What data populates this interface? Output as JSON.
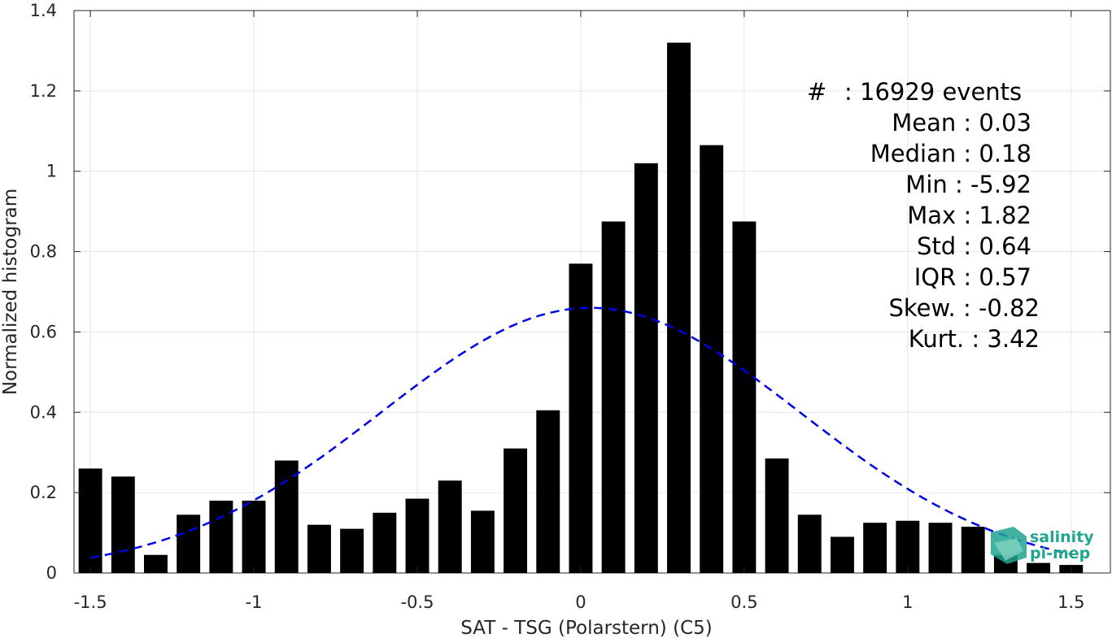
{
  "chart_data": {
    "type": "bar",
    "xlabel": "SAT - TSG (Polarstern) (C5)",
    "ylabel": "Normalized histogram",
    "xlim": [
      -1.55,
      1.62
    ],
    "ylim": [
      0,
      1.4
    ],
    "xticks": [
      -1.5,
      -1,
      -0.5,
      0,
      0.5,
      1,
      1.5
    ],
    "xtick_labels": [
      "-1.5",
      "-1",
      "-0.5",
      "0",
      "0.5",
      "1",
      "1.5"
    ],
    "yticks": [
      0,
      0.2,
      0.4,
      0.6,
      0.8,
      1,
      1.2,
      1.4
    ],
    "ytick_labels": [
      "0",
      "0.2",
      "0.4",
      "0.6",
      "0.8",
      "1",
      "1.2",
      "1.4"
    ],
    "grid": true,
    "bar_color": "#000000",
    "x": [
      -1.5,
      -1.4,
      -1.3,
      -1.2,
      -1.1,
      -1.0,
      -0.9,
      -0.8,
      -0.7,
      -0.6,
      -0.5,
      -0.4,
      -0.3,
      -0.2,
      -0.1,
      0.0,
      0.1,
      0.2,
      0.3,
      0.4,
      0.5,
      0.6,
      0.7,
      0.8,
      0.9,
      1.0,
      1.1,
      1.2,
      1.3,
      1.4,
      1.5
    ],
    "values": [
      0.26,
      0.24,
      0.045,
      0.145,
      0.18,
      0.18,
      0.28,
      0.12,
      0.11,
      0.15,
      0.185,
      0.23,
      0.155,
      0.31,
      0.405,
      0.77,
      0.875,
      1.02,
      1.32,
      1.065,
      0.875,
      0.285,
      0.145,
      0.09,
      0.125,
      0.13,
      0.125,
      0.115,
      0.045,
      0.025,
      0.02
    ],
    "fit_curve": {
      "style": "dashed",
      "color": "#0000e6",
      "mean": 0.03,
      "std": 0.64,
      "peak": 0.66
    },
    "annotations": [
      "#  : 16929 events",
      "Mean : 0.03",
      "Median : 0.18",
      "Min : -5.92",
      "Max : 1.82",
      "Std : 0.64",
      "IQR : 0.57",
      "Skew. : -0.82",
      "Kurt. : 3.42"
    ]
  },
  "logo": {
    "line1": "salinity",
    "line2": "pi-mep",
    "color": "#20a58f"
  }
}
